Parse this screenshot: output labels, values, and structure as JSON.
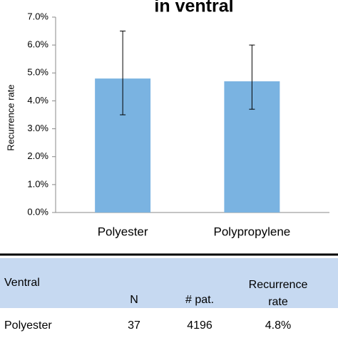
{
  "chart_data": {
    "type": "bar",
    "title": "in ventral",
    "y_label": "Recurrence rate",
    "categories": [
      "Polyester",
      "Polypropylene"
    ],
    "values": [
      4.8,
      4.7
    ],
    "error_lower": [
      3.5,
      3.7
    ],
    "error_upper": [
      6.5,
      6.0
    ],
    "color": "#7ab3e1",
    "ylim": [
      0,
      7
    ],
    "yticks": [
      {
        "value": 0,
        "label": "0.0%"
      },
      {
        "value": 1,
        "label": "1.0%"
      },
      {
        "value": 2,
        "label": "2.0%"
      },
      {
        "value": 3,
        "label": "3.0%"
      },
      {
        "value": 4,
        "label": "4.0%"
      },
      {
        "value": 5,
        "label": "5.0%"
      },
      {
        "value": 6,
        "label": "6.0%"
      },
      {
        "value": 7,
        "label": "7.0%"
      }
    ],
    "grid": false
  },
  "table": {
    "header": [
      "Ventral",
      "N",
      "# pat.",
      "Recurrence rate"
    ],
    "rows": [
      [
        "Polyester",
        "37",
        "4196",
        "4.8%"
      ]
    ]
  }
}
